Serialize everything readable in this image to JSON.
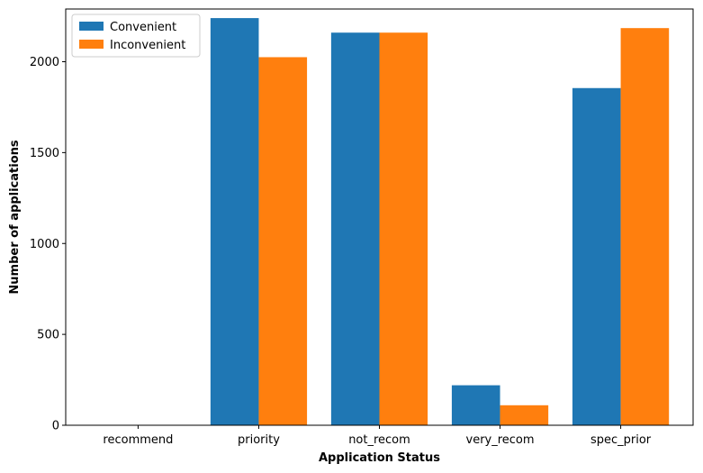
{
  "chart_data": {
    "type": "bar",
    "title": "",
    "xlabel": "Application Status",
    "ylabel": "Number of applications",
    "categories": [
      "recommend",
      "priority",
      "not_recom",
      "very_recom",
      "spec_prior"
    ],
    "series": [
      {
        "name": "Convenient",
        "color": "#1f77b4",
        "values": [
          2,
          2240,
          2160,
          220,
          1855
        ]
      },
      {
        "name": "Inconvenient",
        "color": "#ff7f0e",
        "values": [
          0,
          2025,
          2160,
          110,
          2185
        ]
      }
    ],
    "ylim": [
      0,
      2290
    ],
    "yticks": [
      0,
      500,
      1000,
      1500,
      2000
    ],
    "grid": false,
    "legend_position": "top-left"
  }
}
